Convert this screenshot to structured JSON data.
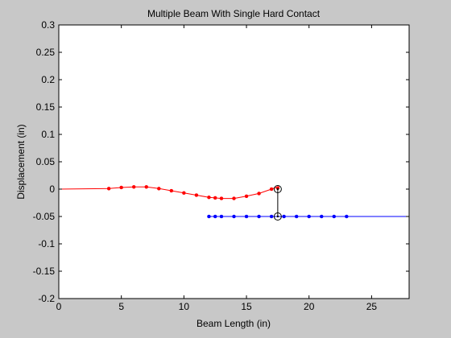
{
  "chart_data": {
    "type": "line",
    "title": "Multiple Beam With Single Hard Contact",
    "xlabel": "Beam Length (in)",
    "ylabel": "Displacement (in)",
    "xlim": [
      0,
      28
    ],
    "ylim": [
      -0.2,
      0.3
    ],
    "xticks": [
      0,
      5,
      10,
      15,
      20,
      25
    ],
    "yticks": [
      -0.2,
      -0.15,
      -0.1,
      -0.05,
      0,
      0.05,
      0.1,
      0.15,
      0.2,
      0.25,
      0.3
    ],
    "grid": false,
    "background": "#c8c8c8",
    "axes_background": "#ffffff",
    "series": [
      {
        "color": "#ff0000",
        "marker": "dot",
        "x": [
          0,
          4,
          5,
          6,
          7,
          8,
          9,
          10,
          11,
          12,
          12.5,
          13,
          14,
          15,
          16,
          17,
          17.6
        ],
        "y": [
          0,
          0.001,
          0.003,
          0.004,
          0.004,
          0.001,
          -0.003,
          -0.007,
          -0.011,
          -0.015,
          -0.016,
          -0.017,
          -0.017,
          -0.013,
          -0.008,
          0,
          0.005
        ],
        "markers_x": [
          4,
          5,
          6,
          7,
          8,
          9,
          10,
          11,
          12,
          12.5,
          13,
          14,
          15,
          16,
          17,
          17.5
        ],
        "markers_y": [
          0.001,
          0.003,
          0.004,
          0.004,
          0.001,
          -0.003,
          -0.007,
          -0.011,
          -0.015,
          -0.016,
          -0.017,
          -0.017,
          -0.013,
          -0.008,
          0,
          0.002
        ]
      },
      {
        "color": "#0000ff",
        "marker": "dot",
        "x": [
          12,
          28
        ],
        "y": [
          -0.05,
          -0.05
        ],
        "markers_x": [
          12,
          12.5,
          13,
          14,
          15,
          16,
          17,
          18,
          19,
          20,
          21,
          22,
          23
        ],
        "markers_y": [
          -0.05,
          -0.05,
          -0.05,
          -0.05,
          -0.05,
          -0.05,
          -0.05,
          -0.05,
          -0.05,
          -0.05,
          -0.05,
          -0.05,
          -0.05
        ]
      }
    ],
    "contact": {
      "x": 17.5,
      "y_top": 0,
      "y_bottom": -0.05,
      "color": "#000000"
    }
  }
}
